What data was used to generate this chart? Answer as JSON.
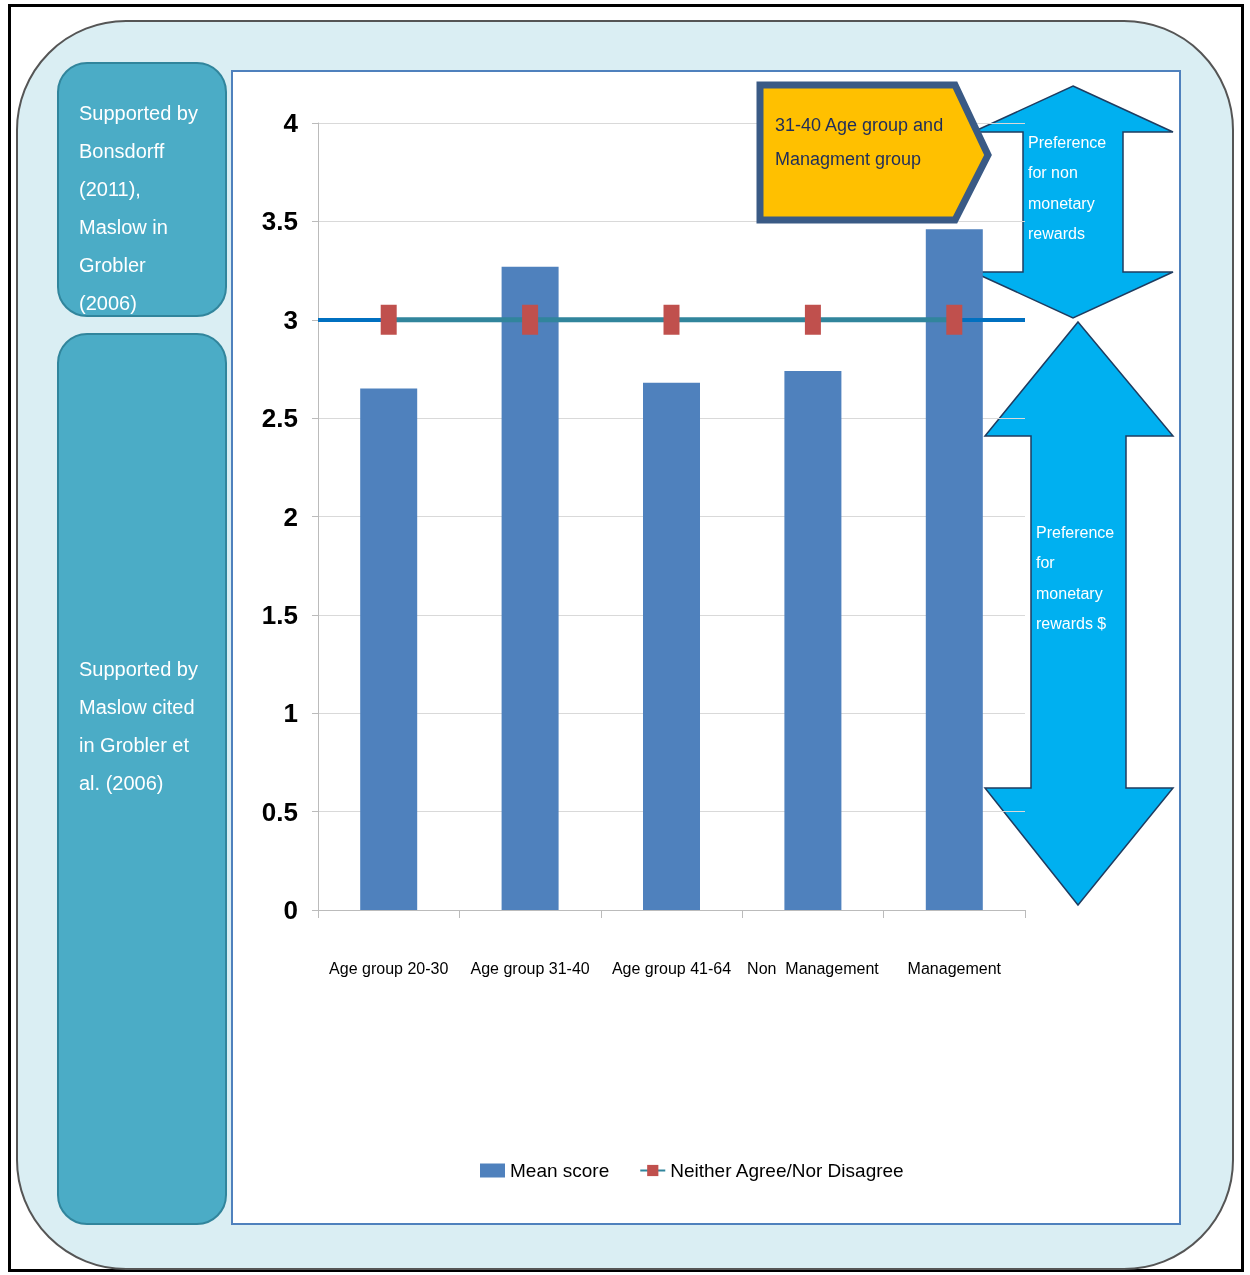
{
  "chart_data": {
    "type": "bar",
    "categories": [
      "Age group 20-30",
      "Age group 31-40",
      "Age group 41-64",
      "Non  Management",
      "Management"
    ],
    "series": [
      {
        "name": "Mean score",
        "color": "#4f81bd",
        "values": [
          2.65,
          3.27,
          2.68,
          2.74,
          3.46
        ]
      },
      {
        "name": "Neither Agree/Nor Disagree",
        "type": "line",
        "color": "#31859c",
        "marker": "square",
        "colors": [
          "#c0504d",
          "#c0504d",
          "#c0504d",
          "#c0504d",
          "#c0504d"
        ],
        "values": [
          3,
          3,
          3,
          3,
          3
        ]
      }
    ],
    "ylim": [
      0,
      4
    ],
    "yticks": [
      0,
      0.5,
      1,
      1.5,
      2,
      2.5,
      3,
      3.5,
      4
    ],
    "grid": "y",
    "legend": "bottom",
    "ref_lines": [
      {
        "axis": "y",
        "value": 3,
        "color": "#0070c0"
      }
    ],
    "annotations": [
      "Supported by Bonsdorff (2011), Maslow in Grobler (2006)",
      "Supported by Maslow cited in Grobler et al. (2006)",
      "31-40 Age group and Managment group",
      "Preference for non monetary rewards",
      "Preference for monetary rewards $"
    ]
  }
}
